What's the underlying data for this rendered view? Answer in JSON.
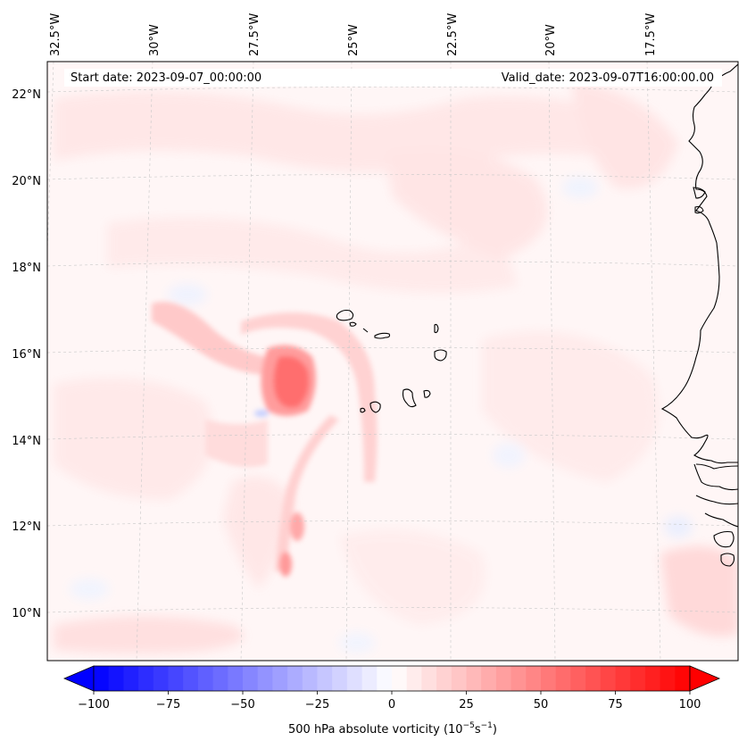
{
  "header": {
    "start_label": "Start date: 2023-09-07_00:00:00",
    "valid_label": "Valid_date: 2023-09-07T16:00:00.00"
  },
  "axes": {
    "lon_labels": [
      "32.5°W",
      "30°W",
      "27.5°W",
      "25°W",
      "22.5°W",
      "20°W",
      "17.5°W"
    ],
    "lat_labels": [
      "22°N",
      "20°N",
      "18°N",
      "16°N",
      "14°N",
      "12°N",
      "10°N"
    ]
  },
  "colorbar": {
    "ticks": [
      "−100",
      "−75",
      "−50",
      "−25",
      "0",
      "25",
      "50",
      "75",
      "100"
    ],
    "min": -100,
    "max": 100,
    "label_text": "500 hPa absolute vorticity (",
    "label_base": "10",
    "label_exp1": "−5",
    "label_unit": "s",
    "label_exp2": "−1",
    "label_close": ")"
  },
  "colors": {
    "negative": "#0000ff",
    "zero": "#ffffff",
    "positive": "#ff0000",
    "coast": "#000000"
  }
}
